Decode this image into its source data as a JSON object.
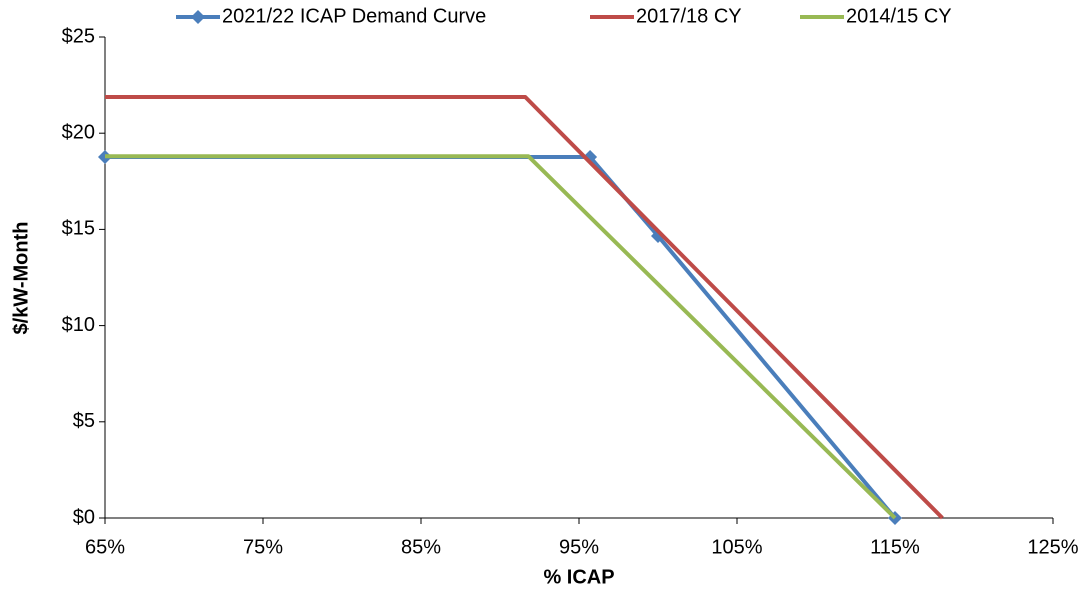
{
  "chart_data": {
    "type": "line",
    "xlabel": "% ICAP",
    "ylabel": "$/kW-Month",
    "xlim": [
      65,
      125
    ],
    "xticks": [
      {
        "value": 65,
        "label": "65%"
      },
      {
        "value": 75,
        "label": "75%"
      },
      {
        "value": 85,
        "label": "85%"
      },
      {
        "value": 95,
        "label": "95%"
      },
      {
        "value": 105,
        "label": "105%"
      },
      {
        "value": 115,
        "label": "115%"
      },
      {
        "value": 125,
        "label": "125%"
      }
    ],
    "ylim": [
      0,
      25
    ],
    "yticks": [
      {
        "value": 0,
        "label": "$0"
      },
      {
        "value": 5,
        "label": "$5"
      },
      {
        "value": 10,
        "label": "$10"
      },
      {
        "value": 15,
        "label": "$15"
      },
      {
        "value": 20,
        "label": "$20"
      },
      {
        "value": 25,
        "label": "$25"
      }
    ],
    "legend": "top",
    "series": [
      {
        "name": "2021/22 ICAP Demand Curve",
        "color": "#4a7ebb",
        "marker": "diamond",
        "x": [
          65,
          95.7,
          100,
          115
        ],
        "values": [
          18.76,
          18.76,
          14.66,
          0
        ]
      },
      {
        "name": "2017/18 CY",
        "color": "#be4b48",
        "x": [
          65,
          91.6,
          118
        ],
        "values": [
          21.88,
          21.88,
          0
        ]
      },
      {
        "name": "2014/15 CY",
        "color": "#98b954",
        "x": [
          65,
          91.8,
          115
        ],
        "values": [
          18.8,
          18.8,
          0
        ]
      }
    ]
  }
}
